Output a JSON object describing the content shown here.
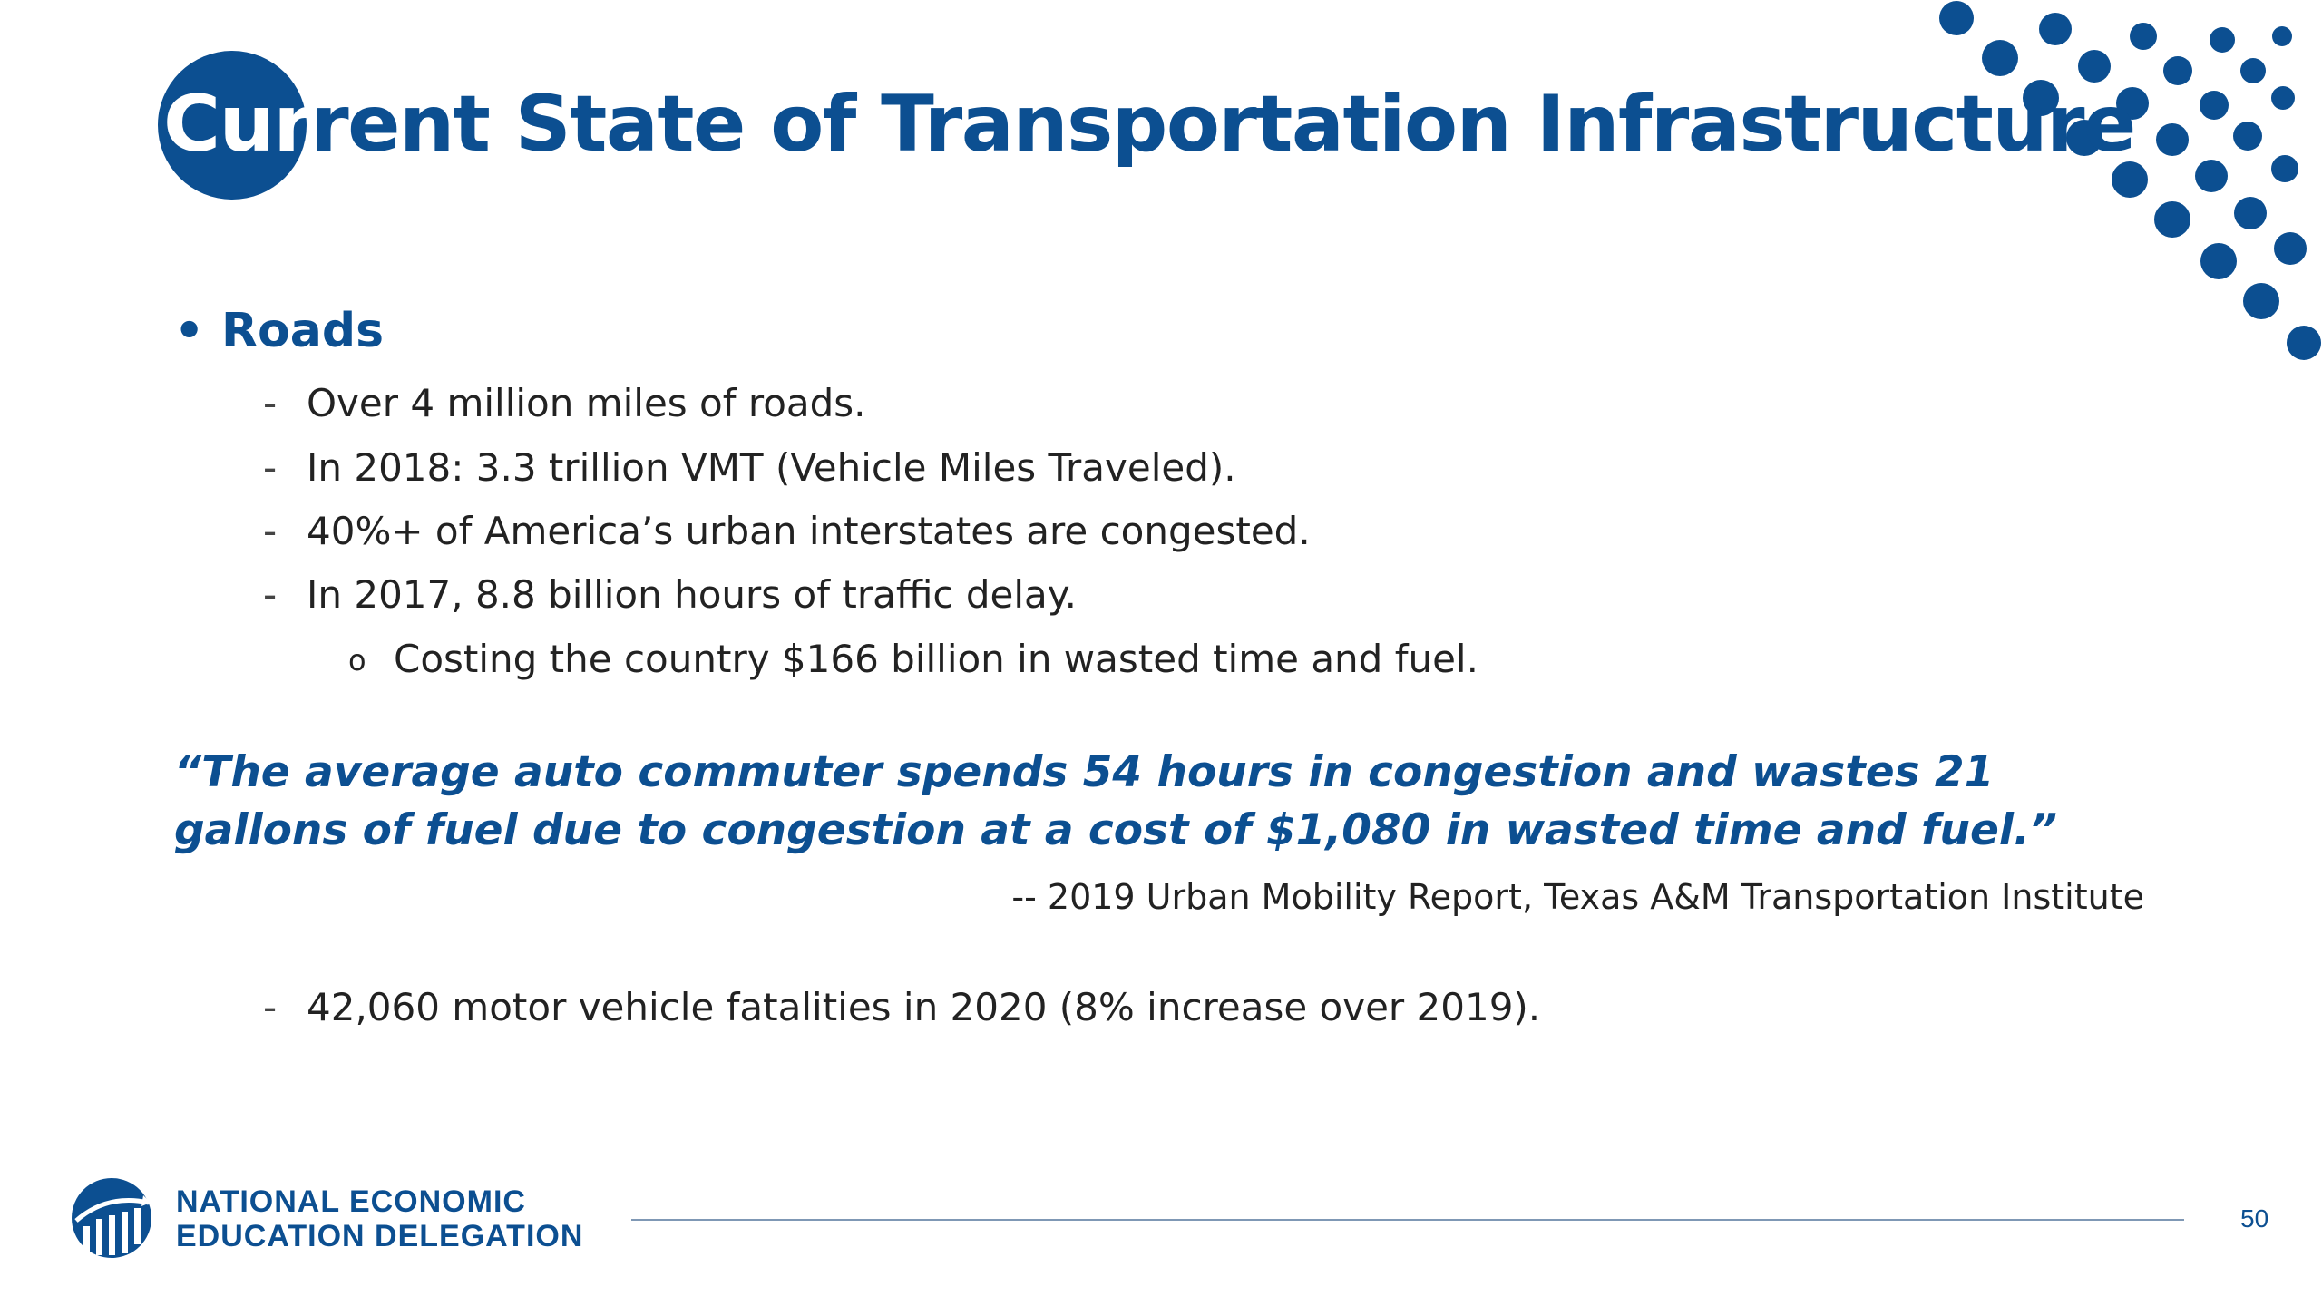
{
  "slide": {
    "title_prefix": "Cur",
    "title_rest": "rent State of Transportation Infrastructure",
    "section": {
      "bullet": "•",
      "heading": "Roads",
      "items": [
        {
          "marker": "-",
          "text": "Over 4 million miles of roads."
        },
        {
          "marker": "-",
          "text": "In 2018: 3.3 trillion VMT (Vehicle Miles Traveled)."
        },
        {
          "marker": "-",
          "text": "40%+ of America’s urban interstates are congested."
        },
        {
          "marker": "-",
          "text": "In 2017, 8.8 billion hours of traffic delay."
        }
      ],
      "subitem": {
        "marker": "o",
        "text": "Costing the country $166 billion in wasted time and fuel."
      }
    },
    "quote": "“The average auto commuter spends 54 hours in congestion and wastes 21 gallons of fuel due to congestion at a cost of $1,080 in wasted time and fuel.”",
    "attribution": "-- 2019 Urban Mobility Report, Texas A&M Transportation Institute",
    "last_item": {
      "marker": "-",
      "text": "42,060 motor vehicle fatalities in 2020 (8% increase over 2019)."
    }
  },
  "footer": {
    "logo_line1": "NATIONAL ECONOMIC",
    "logo_line2": "EDUCATION DELEGATION",
    "page_number": "50"
  },
  "colors": {
    "brand_blue": "#0c4f91",
    "body_text": "#222222",
    "rule": "#7f98b5"
  }
}
